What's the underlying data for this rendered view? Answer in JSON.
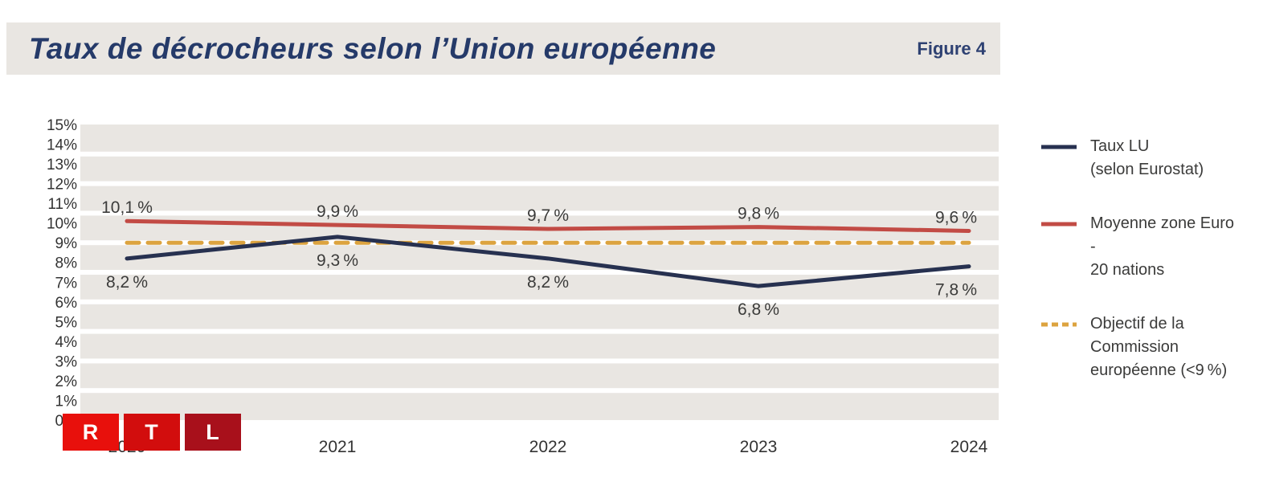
{
  "header": {
    "title": "Taux de décrocheurs selon l’Union européenne",
    "figure_label": "Figure 4"
  },
  "logo": {
    "name": "RTL",
    "blocks": [
      {
        "letter": "R",
        "color": "#e8100c"
      },
      {
        "letter": "T",
        "color": "#d20d0d"
      },
      {
        "letter": "L",
        "color": "#a8101b"
      }
    ]
  },
  "chart_data": {
    "type": "line",
    "title": "Taux de décrocheurs selon l’Union européenne",
    "x": [
      "2020",
      "2021",
      "2022",
      "2023",
      "2024"
    ],
    "series": [
      {
        "name": "Taux LU (selon Eurostat)",
        "values": [
          8.2,
          9.3,
          8.2,
          6.8,
          7.8
        ],
        "labels": [
          "8,2 %",
          "9,3 %",
          "8,2 %",
          "6,8 %",
          "7,8 %"
        ],
        "color": "#273150",
        "style": "solid",
        "label_side": "below"
      },
      {
        "name": "Moyenne zone Euro - 20 nations",
        "values": [
          10.1,
          9.9,
          9.7,
          9.8,
          9.6
        ],
        "labels": [
          "10,1 %",
          "9,9 %",
          "9,7 %",
          "9,8 %",
          "9,6 %"
        ],
        "color": "#c24b45",
        "style": "solid",
        "label_side": "above"
      },
      {
        "name": "Objectif de la Commission européenne (<9 %)",
        "values": [
          9,
          9,
          9,
          9,
          9
        ],
        "labels": [],
        "color": "#dca33f",
        "style": "dashed",
        "label_side": "none"
      }
    ],
    "ylim": [
      0,
      15
    ],
    "y_tick_step": 1,
    "y_tick_suffix": "%",
    "grid": "horizontal white bands every 1.5%",
    "plot_background": "#e9e6e2",
    "legend_position": "right",
    "text_color": "#3b3b3a"
  },
  "legend": {
    "items": [
      {
        "label": "Taux LU\n(selon Eurostat)",
        "color": "#273150",
        "style": "solid"
      },
      {
        "label": "Moyenne zone Euro -\n20 nations",
        "color": "#c24b45",
        "style": "solid"
      },
      {
        "label": "Objectif de la\nCommission\neuropéenne (<9 %)",
        "color": "#dca33f",
        "style": "dashed"
      }
    ]
  }
}
